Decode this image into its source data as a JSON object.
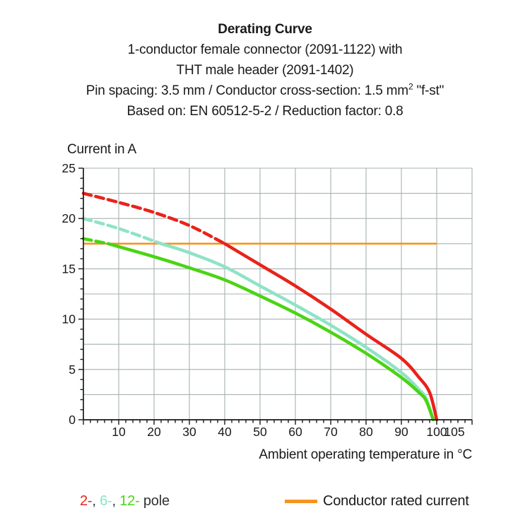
{
  "header": {
    "title": "Derating Curve",
    "subtitle_lines": [
      "1-conductor female connector (2091-1122) with",
      "THT male header (2091-1402)"
    ],
    "spec_line": {
      "before_sup": "Pin spacing: 3.5 mm / Conductor cross-section: 1.5 mm",
      "sup": "2",
      "after_sup": " \"f-st\""
    },
    "basis_line": "Based on: EN 60512-5-2 / Reduction factor: 0.8"
  },
  "chart_data": {
    "type": "line",
    "title": "Derating Curve",
    "xlabel": "Ambient operating temperature in °C",
    "ylabel": "Current in A",
    "xlim": [
      0,
      110
    ],
    "ylim": [
      0,
      25
    ],
    "x_tick_labels": [
      10,
      20,
      30,
      40,
      50,
      60,
      70,
      80,
      90,
      100,
      105
    ],
    "x_minor_step": 2,
    "x_grid_step": 10,
    "y_tick_labels": [
      0,
      5,
      10,
      15,
      20,
      25
    ],
    "y_minor_step": 1,
    "y_grid_step": 2.5,
    "grid": true,
    "grid_color": "#a6b1b1",
    "axis_color": "#1a1a1a",
    "dash_note": "curves are dashed above the conductor rated current and solid below it",
    "series": [
      {
        "name": "2-pole",
        "color": "#e8231a",
        "solid_from_x": 40,
        "points": [
          [
            0,
            22.5
          ],
          [
            10,
            21.6
          ],
          [
            20,
            20.6
          ],
          [
            30,
            19.3
          ],
          [
            40,
            17.5
          ],
          [
            50,
            15.4
          ],
          [
            60,
            13.3
          ],
          [
            70,
            11.0
          ],
          [
            80,
            8.5
          ],
          [
            90,
            6.1
          ],
          [
            95,
            4.2
          ],
          [
            98,
            2.7
          ],
          [
            100,
            0
          ]
        ]
      },
      {
        "name": "6-pole",
        "color": "#8fe3c6",
        "solid_from_x": 22,
        "points": [
          [
            0,
            20.0
          ],
          [
            10,
            19.0
          ],
          [
            22,
            17.5
          ],
          [
            30,
            16.6
          ],
          [
            40,
            15.2
          ],
          [
            50,
            13.3
          ],
          [
            60,
            11.4
          ],
          [
            70,
            9.4
          ],
          [
            80,
            7.2
          ],
          [
            90,
            4.7
          ],
          [
            95,
            3.0
          ],
          [
            97,
            2.1
          ],
          [
            99,
            0
          ]
        ]
      },
      {
        "name": "12-pole",
        "color": "#4ad414",
        "solid_from_x": 7,
        "points": [
          [
            0,
            18.0
          ],
          [
            7,
            17.5
          ],
          [
            20,
            16.2
          ],
          [
            30,
            15.1
          ],
          [
            40,
            13.9
          ],
          [
            50,
            12.3
          ],
          [
            60,
            10.6
          ],
          [
            70,
            8.7
          ],
          [
            80,
            6.6
          ],
          [
            90,
            4.2
          ],
          [
            95,
            2.7
          ],
          [
            97,
            1.9
          ],
          [
            99,
            0
          ]
        ]
      }
    ],
    "rated_current_line": {
      "value": 17.5,
      "x_start": 0,
      "x_end": 100,
      "color": "#f6941e",
      "label": "Conductor rated current"
    }
  },
  "legend": {
    "poles": [
      {
        "label": "2-",
        "color": "#e8231a"
      },
      {
        "label": "6-",
        "color": "#8fe3c6"
      },
      {
        "label": "12-",
        "color": "#4ad414"
      }
    ],
    "separator": ", ",
    "pole_suffix": " pole",
    "text_color": "#333333",
    "rated_label": "Conductor rated current"
  }
}
